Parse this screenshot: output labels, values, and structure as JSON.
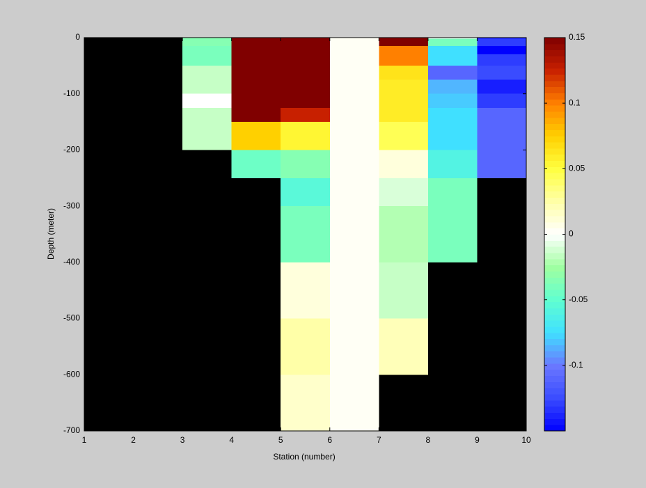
{
  "chart_data": {
    "type": "heatmap",
    "xlabel": "Station (number)",
    "ylabel": "Depth (meter)",
    "xlim": [
      1,
      10
    ],
    "ylim": [
      -700,
      0
    ],
    "xticks": [
      1,
      2,
      3,
      4,
      5,
      6,
      7,
      8,
      9,
      10
    ],
    "yticks": [
      -700,
      -600,
      -500,
      -400,
      -300,
      -200,
      -100,
      0
    ],
    "x_edges": [
      1,
      2,
      3,
      4,
      5,
      6,
      7,
      8,
      9,
      10
    ],
    "y_edges": [
      0,
      -2,
      -15,
      -30,
      -50,
      -75,
      -100,
      -125,
      -150,
      -200,
      -250,
      -300,
      -400,
      -500,
      -600,
      -700
    ],
    "values": [
      [
        null,
        null,
        -0.035,
        0.15,
        0.15,
        0.003,
        0.15,
        0,
        -0.14
      ],
      [
        null,
        null,
        -0.035,
        0.15,
        0.15,
        0.003,
        0.15,
        -0.04,
        -0.13
      ],
      [
        null,
        null,
        -0.04,
        0.15,
        0.15,
        0.003,
        0.1,
        -0.075,
        -0.15
      ],
      [
        null,
        null,
        -0.04,
        0.15,
        0.15,
        0.003,
        0.1,
        -0.075,
        -0.13
      ],
      [
        null,
        null,
        -0.015,
        0.15,
        0.15,
        0.003,
        0.065,
        -0.11,
        -0.125
      ],
      [
        null,
        null,
        -0.015,
        0.15,
        0.15,
        0.003,
        0.06,
        -0.085,
        -0.14
      ],
      [
        null,
        null,
        0,
        0.15,
        0.15,
        0.003,
        0.06,
        -0.08,
        -0.13
      ],
      [
        null,
        null,
        -0.015,
        0.15,
        0.125,
        0.003,
        0.06,
        -0.075,
        -0.11
      ],
      [
        null,
        null,
        -0.015,
        0.075,
        0.055,
        0.003,
        0.045,
        -0.075,
        -0.11
      ],
      [
        null,
        null,
        null,
        -0.045,
        -0.035,
        0.003,
        0.01,
        -0.06,
        -0.11
      ],
      [
        null,
        null,
        null,
        null,
        -0.055,
        0.003,
        -0.01,
        -0.04,
        null
      ],
      [
        null,
        null,
        null,
        null,
        -0.04,
        0.003,
        -0.02,
        -0.04,
        null
      ],
      [
        null,
        null,
        null,
        null,
        0.01,
        0.003,
        -0.015,
        null,
        null
      ],
      [
        null,
        null,
        null,
        null,
        0.025,
        0.003,
        0.02,
        null,
        null
      ],
      [
        null,
        null,
        null,
        null,
        0.015,
        0.003,
        null,
        null,
        null
      ]
    ],
    "clim": [
      -0.15,
      0.15
    ],
    "cticks": [
      -0.1,
      -0.05,
      0,
      0.05,
      0.1,
      0.15
    ],
    "colormap": [
      "#0000ff",
      "#3a4cff",
      "#6a78ff",
      "#40e0ff",
      "#60ffd0",
      "#a0ffa0",
      "#ffffff",
      "#ffffa8",
      "#ffff40",
      "#ffd000",
      "#ff8000",
      "#c82000",
      "#800000"
    ],
    "missing_color": "#000000"
  }
}
